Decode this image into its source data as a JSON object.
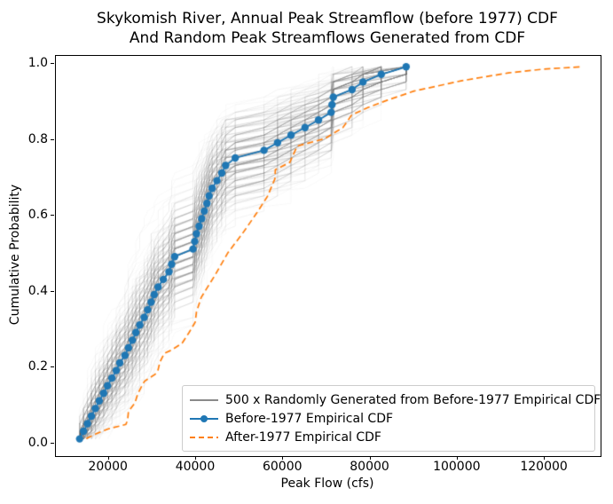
{
  "title": {
    "line1": "Skykomish River, Annual Peak Streamflow (before 1977) CDF",
    "line2": "And Random Peak Streamflows Generated from CDF"
  },
  "axes": {
    "xlabel": "Peak Flow (cfs)",
    "ylabel": "Cumulative Probability",
    "xlim": [
      7850,
      132800
    ],
    "ylim": [
      -0.033,
      1.021
    ],
    "xticks": [
      {
        "value": 20000,
        "label": "20000"
      },
      {
        "value": 40000,
        "label": "40000"
      },
      {
        "value": 60000,
        "label": "60000"
      },
      {
        "value": 80000,
        "label": "80000"
      },
      {
        "value": 100000,
        "label": "100000"
      },
      {
        "value": 120000,
        "label": "120000"
      }
    ],
    "yticks": [
      {
        "value": 0.0,
        "label": "0.0"
      },
      {
        "value": 0.2,
        "label": "0.2"
      },
      {
        "value": 0.4,
        "label": "0.4"
      },
      {
        "value": 0.6,
        "label": "0.6"
      },
      {
        "value": 0.8,
        "label": "0.8"
      },
      {
        "value": 1.0,
        "label": "1.0"
      }
    ]
  },
  "legend": {
    "items": [
      {
        "label": "500 x Randomly Generated from Before-1977 Empirical CDF",
        "sample": "gray-line",
        "color": "#8a8a8a"
      },
      {
        "label": "Before-1977 Empirical CDF",
        "sample": "blue-line-marker",
        "color": "#1f77b4"
      },
      {
        "label": "After-1977 Empirical CDF",
        "sample": "orange-dashed",
        "color": "#ff7f0e"
      }
    ]
  },
  "chart_data": {
    "type": "line",
    "title": "Skykomish River, Annual Peak Streamflow (before 1977) CDF And Random Peak Streamflows Generated from CDF",
    "xlabel": "Peak Flow (cfs)",
    "ylabel": "Cumulative Probability",
    "xlim": [
      7850,
      132800
    ],
    "ylim": [
      -0.033,
      1.021
    ],
    "grid": false,
    "legend_position": "lower right",
    "plotting_position_formula": "(i - 0.5) / n",
    "series": [
      {
        "name": "Before-1977 Empirical CDF",
        "style": "solid_with_markers",
        "color": "#1f77b4",
        "marker_radius": 4.2,
        "line_width": 1.8,
        "peak_flow_cfs": [
          13500,
          14400,
          15300,
          16200,
          17100,
          18000,
          19000,
          19900,
          20900,
          21900,
          22700,
          23900,
          24700,
          25600,
          26400,
          27300,
          28300,
          29100,
          29900,
          30600,
          31500,
          32700,
          34000,
          34600,
          35300,
          39500,
          39900,
          40300,
          40900,
          41500,
          42100,
          42700,
          43200,
          43900,
          45000,
          46100,
          47000,
          49200,
          55800,
          58900,
          62000,
          65200,
          68300,
          71200,
          71400,
          71700,
          76000,
          78500,
          82700,
          88400
        ],
        "cumulative_probability": [
          0.01,
          0.03,
          0.05,
          0.07,
          0.09,
          0.11,
          0.13,
          0.15,
          0.17,
          0.19,
          0.21,
          0.23,
          0.25,
          0.27,
          0.29,
          0.31,
          0.33,
          0.35,
          0.37,
          0.39,
          0.41,
          0.43,
          0.45,
          0.47,
          0.49,
          0.51,
          0.53,
          0.55,
          0.57,
          0.59,
          0.61,
          0.63,
          0.65,
          0.67,
          0.69,
          0.71,
          0.73,
          0.75,
          0.77,
          0.79,
          0.81,
          0.83,
          0.85,
          0.87,
          0.89,
          0.91,
          0.93,
          0.95,
          0.97,
          0.99
        ]
      },
      {
        "name": "After-1977 Empirical CDF",
        "style": "dashed",
        "color": "#ff7f0e",
        "line_width": 1.7,
        "dash_pattern": [
          7,
          4
        ],
        "peak_flow_cfs": [
          15000,
          17200,
          20000,
          24100,
          24500,
          24700,
          26200,
          26800,
          27800,
          28400,
          30800,
          31500,
          31900,
          32900,
          34600,
          37000,
          38600,
          40000,
          40300,
          41400,
          44500,
          47500,
          50800,
          54200,
          56600,
          58300,
          58400,
          61700,
          63400,
          69800,
          73900,
          75900,
          79700,
          84100,
          90200,
          101000,
          111900,
          120000,
          128800
        ],
        "cumulative_probability": [
          0.011,
          0.023,
          0.036,
          0.048,
          0.059,
          0.082,
          0.105,
          0.128,
          0.15,
          0.162,
          0.18,
          0.192,
          0.212,
          0.235,
          0.244,
          0.262,
          0.29,
          0.317,
          0.344,
          0.383,
          0.44,
          0.5,
          0.55,
          0.606,
          0.649,
          0.695,
          0.719,
          0.738,
          0.781,
          0.801,
          0.83,
          0.863,
          0.883,
          0.902,
          0.926,
          0.953,
          0.974,
          0.984,
          0.99
        ]
      },
      {
        "name": "500 x Randomly Generated from Before-1977 Empirical CDF",
        "style": "bootstrap_ensemble",
        "color": "#808080",
        "alpha": 0.05,
        "line_width": 1,
        "count": 500,
        "sample_size": 50,
        "resampled_from": "Before-1977 Empirical CDF",
        "random_seed": 1234
      }
    ]
  }
}
